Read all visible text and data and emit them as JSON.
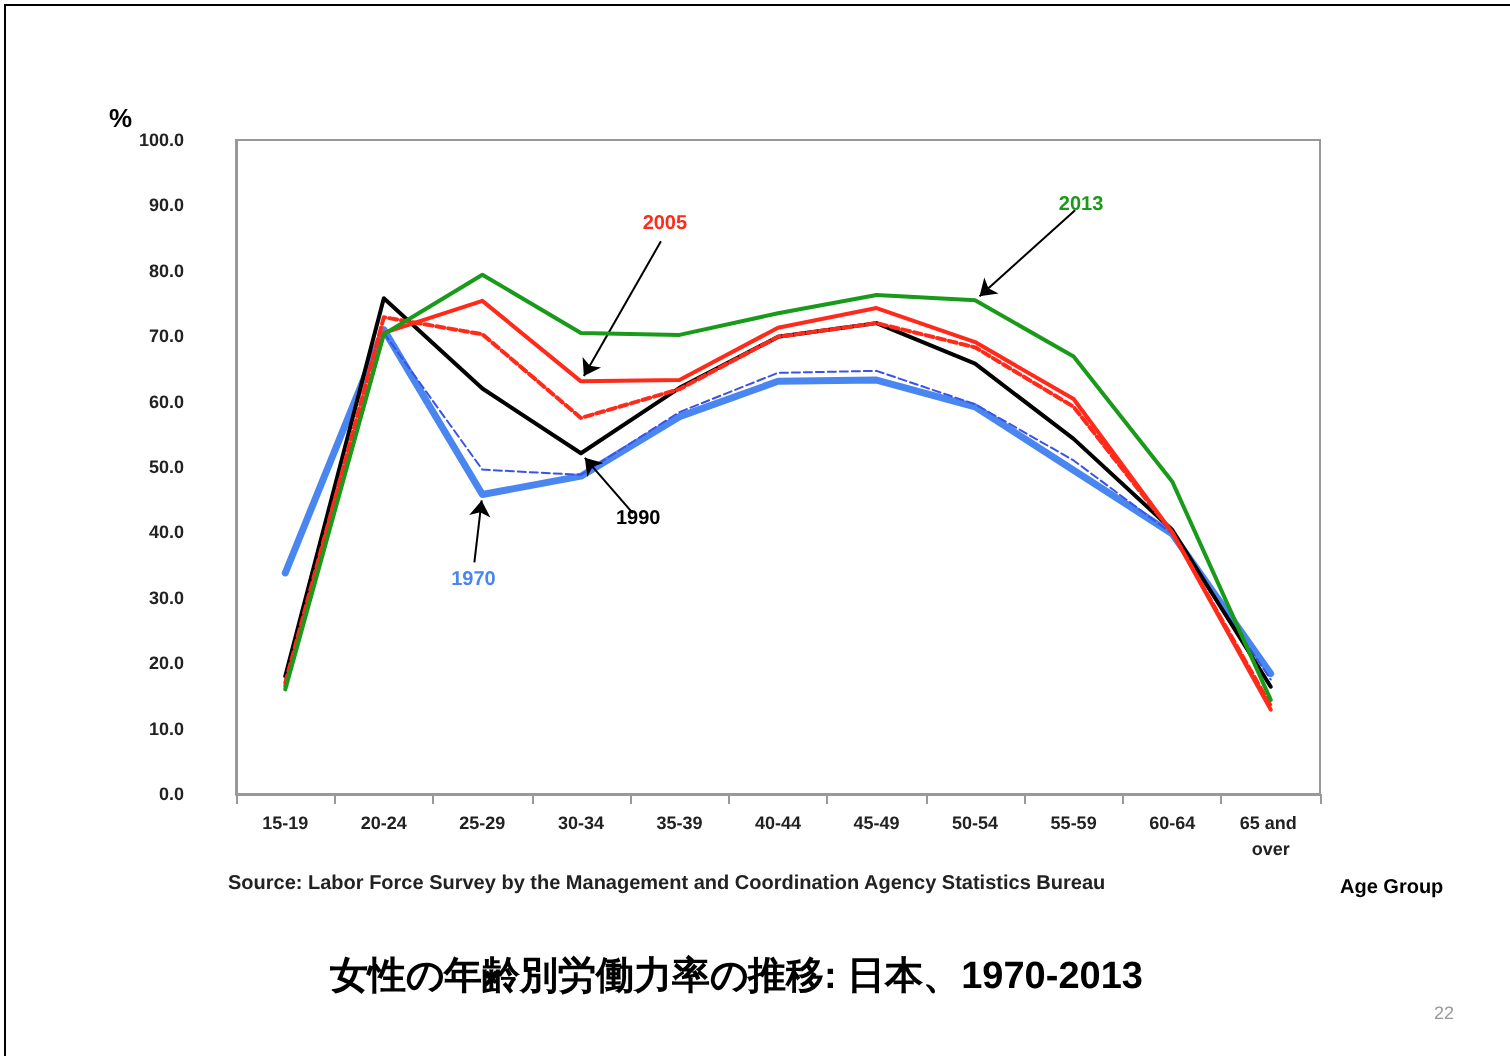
{
  "chart_data": {
    "type": "line",
    "title": "女性の年齢別労働力率の推移: 日本、1970-2013",
    "xlabel": "Age Group",
    "ylabel": "%",
    "annotations": [
      "Source: Labor Force Survey by the Management and Coordination Agency Statistics Bureau",
      "22"
    ],
    "categories": [
      "15-19",
      "20-24",
      "25-29",
      "30-34",
      "35-39",
      "40-44",
      "45-49",
      "50-54",
      "55-59",
      "60-64",
      "65 and over"
    ],
    "series": [
      {
        "name": "1970",
        "color": "#4a86f0",
        "line_style": "solid",
        "values": [
          33.8,
          71.0,
          45.8,
          48.6,
          57.7,
          63.1,
          63.3,
          59.2,
          49.5,
          39.8,
          18.4
        ]
      },
      {
        "color": "#3a52e8",
        "line_style": "dashed",
        "values": [
          null,
          70.5,
          49.6,
          48.8,
          58.4,
          64.4,
          64.7,
          59.6,
          51.0,
          39.8,
          17.5
        ]
      },
      {
        "name": "1990",
        "color": "#000000",
        "line_style": "solid",
        "values": [
          18.0,
          75.8,
          62.0,
          52.1,
          62.1,
          69.9,
          72.0,
          65.8,
          54.3,
          40.4,
          16.4
        ]
      },
      {
        "color": "#ff2a1a",
        "line_style": "dashed",
        "values": [
          17.0,
          72.9,
          70.3,
          57.5,
          61.9,
          69.9,
          72.0,
          68.3,
          59.2,
          40.0,
          13.5
        ]
      },
      {
        "name": "2005",
        "color": "#ff2a1a",
        "line_style": "solid",
        "values": [
          16.5,
          70.5,
          75.4,
          63.1,
          63.3,
          71.3,
          74.3,
          69.1,
          60.4,
          40.0,
          12.9
        ]
      },
      {
        "name": "2013",
        "color": "#1a9a1a",
        "line_style": "solid",
        "values": [
          16.0,
          70.3,
          79.4,
          70.5,
          70.2,
          73.5,
          76.3,
          75.5,
          66.9,
          47.8,
          14.4
        ]
      }
    ],
    "ylim": [
      0,
      100
    ],
    "yticks": [
      {
        "value": 0,
        "label": "0.0"
      },
      {
        "value": 10,
        "label": "10.0"
      },
      {
        "value": 20,
        "label": "20.0"
      },
      {
        "value": 30,
        "label": "30.0"
      },
      {
        "value": 40,
        "label": "40.0"
      },
      {
        "value": 50,
        "label": "50.0"
      },
      {
        "value": 60,
        "label": "60.0"
      },
      {
        "value": 70,
        "label": "70.0"
      },
      {
        "value": 80,
        "label": "80.0"
      },
      {
        "value": 90,
        "label": "90.0"
      },
      {
        "value": 100,
        "label": "100.0"
      }
    ],
    "grid": false,
    "legend": false,
    "marker": "none"
  }
}
